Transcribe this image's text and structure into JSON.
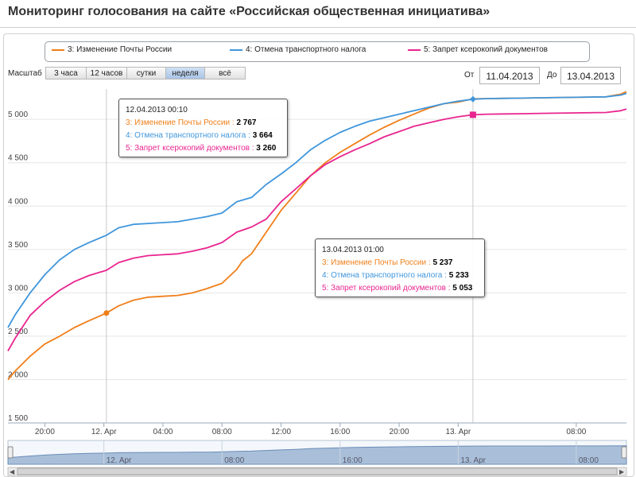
{
  "title": "Мониторинг голосования на сайте «Российская общественная инициатива»",
  "legend": [
    {
      "label": "3: Изменение Почты России",
      "color": "#f07f1a"
    },
    {
      "label": "4: Отмена транспортного налога",
      "color": "#3f96dc"
    },
    {
      "label": "5: Запрет ксерокопий документов",
      "color": "#e8258f"
    }
  ],
  "zoom": {
    "label": "Масштаб",
    "buttons": [
      "3 часа",
      "12 часов",
      "сутки",
      "неделя",
      "всё"
    ],
    "active": "неделя"
  },
  "range": {
    "from_label": "От",
    "from_value": "11.04.2013",
    "to_label": "До",
    "to_value": "13.04.2013"
  },
  "tooltips": [
    {
      "header": "12.04.2013 00:10",
      "rows": [
        {
          "label": "3: Изменение Почты России",
          "value": "2 767",
          "color": "#f07f1a"
        },
        {
          "label": "4: Отмена транспортного налога",
          "value": "3 664",
          "color": "#3f96dc"
        },
        {
          "label": "5: Запрет ксерокопий документов",
          "value": "3 260",
          "color": "#e8258f"
        }
      ]
    },
    {
      "header": "13.04.2013 01:00",
      "rows": [
        {
          "label": "3: Изменение Почты России",
          "value": "5 237",
          "color": "#f07f1a"
        },
        {
          "label": "4: Отмена транспортного налога",
          "value": "5 233",
          "color": "#3f96dc"
        },
        {
          "label": "5: Запрет ксерокопий документов",
          "value": "5 053",
          "color": "#e8258f"
        }
      ]
    }
  ],
  "navigator_labels": [
    "12. Apr",
    "08:00",
    "16:00",
    "13. Apr",
    "08:00"
  ],
  "chart_data": {
    "type": "line",
    "title": "",
    "xlabel": "",
    "ylabel": "",
    "x_tick_labels": [
      "20:00",
      "12. Apr",
      "04:00",
      "08:00",
      "12:00",
      "16:00",
      "20:00",
      "13. Apr",
      "08:00"
    ],
    "x_ticks_hours": [
      20,
      24,
      28,
      32,
      36,
      40,
      44,
      48,
      56
    ],
    "y_tick_labels": [
      "1 500",
      "2 000",
      "2 500",
      "3 000",
      "3 500",
      "4 000",
      "4 500",
      "5 000"
    ],
    "y_ticks": [
      1500,
      2000,
      2500,
      3000,
      3500,
      4000,
      4500,
      5000
    ],
    "xlim_hours": [
      17.5,
      59.4
    ],
    "ylim": [
      1500,
      5350
    ],
    "x_unit": "hours since 11.04.2013 00:00",
    "crosshairs_hours": [
      24.17,
      49
    ],
    "series": [
      {
        "name": "3: Изменение Почты России",
        "color": "#f07f1a",
        "marker": "circle",
        "x": [
          17.5,
          18,
          19,
          20,
          21,
          22,
          23,
          24.17,
          25,
          26,
          27,
          28,
          29,
          30,
          31,
          32,
          33,
          33.4,
          34,
          35,
          36,
          37,
          38,
          39,
          40,
          41,
          42,
          43,
          44,
          45,
          46,
          47,
          48,
          49,
          50,
          52,
          54,
          56,
          58,
          59,
          59.4
        ],
        "y": [
          2000,
          2100,
          2270,
          2410,
          2500,
          2600,
          2680,
          2767,
          2850,
          2915,
          2950,
          2960,
          2970,
          3000,
          3050,
          3110,
          3270,
          3370,
          3450,
          3700,
          3950,
          4150,
          4350,
          4500,
          4620,
          4720,
          4820,
          4910,
          4990,
          5060,
          5130,
          5180,
          5200,
          5237,
          5240,
          5245,
          5250,
          5255,
          5260,
          5290,
          5320
        ],
        "marker_index": 7
      },
      {
        "name": "4: Отмена транспортного налога",
        "color": "#3f96dc",
        "marker": "diamond",
        "x": [
          17.5,
          18,
          19,
          20,
          21,
          22,
          23,
          24.17,
          25,
          26,
          27,
          28,
          29,
          30,
          31,
          32,
          33,
          34,
          35,
          36,
          37,
          38,
          39,
          40,
          41,
          42,
          43,
          44,
          45,
          46,
          47,
          48,
          49,
          50,
          52,
          54,
          56,
          58,
          59,
          59.4
        ],
        "y": [
          2600,
          2750,
          3000,
          3210,
          3380,
          3500,
          3580,
          3664,
          3750,
          3790,
          3800,
          3810,
          3820,
          3850,
          3880,
          3920,
          4050,
          4100,
          4250,
          4370,
          4500,
          4650,
          4760,
          4850,
          4920,
          4980,
          5020,
          5060,
          5100,
          5140,
          5180,
          5210,
          5233,
          5240,
          5245,
          5250,
          5255,
          5260,
          5280,
          5300
        ],
        "marker_index": 32
      },
      {
        "name": "5: Запрет ксерокопий документов",
        "color": "#e8258f",
        "marker": "square",
        "x": [
          17.5,
          18,
          19,
          20,
          21,
          22,
          23,
          24.17,
          25,
          26,
          27,
          28,
          29,
          30,
          31,
          32,
          33,
          34,
          35,
          36,
          37,
          38,
          39,
          40,
          41,
          42,
          43,
          44,
          45,
          46,
          47,
          48,
          49,
          50,
          52,
          54,
          56,
          58,
          59,
          59.4
        ],
        "y": [
          2330,
          2480,
          2740,
          2900,
          3030,
          3130,
          3200,
          3260,
          3350,
          3400,
          3430,
          3440,
          3450,
          3480,
          3520,
          3580,
          3700,
          3760,
          3850,
          4050,
          4200,
          4350,
          4480,
          4570,
          4650,
          4720,
          4800,
          4860,
          4920,
          4960,
          5000,
          5030,
          5053,
          5060,
          5065,
          5070,
          5075,
          5080,
          5100,
          5120
        ],
        "marker_index": 32
      }
    ]
  }
}
